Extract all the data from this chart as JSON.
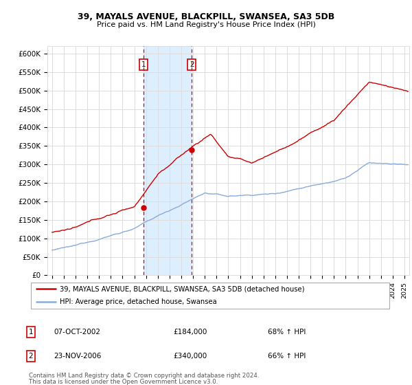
{
  "title1": "39, MAYALS AVENUE, BLACKPILL, SWANSEA, SA3 5DB",
  "title2": "Price paid vs. HM Land Registry's House Price Index (HPI)",
  "ylabel_ticks": [
    "£0",
    "£50K",
    "£100K",
    "£150K",
    "£200K",
    "£250K",
    "£300K",
    "£350K",
    "£400K",
    "£450K",
    "£500K",
    "£550K",
    "£600K"
  ],
  "ytick_values": [
    0,
    50000,
    100000,
    150000,
    200000,
    250000,
    300000,
    350000,
    400000,
    450000,
    500000,
    550000,
    600000
  ],
  "xmin": 1994.6,
  "xmax": 2025.4,
  "ymin": 0,
  "ymax": 620000,
  "purchase1": {
    "date_num": 2002.77,
    "price": 184000,
    "label": "1",
    "date_str": "07-OCT-2002",
    "pct": "68% ↑ HPI"
  },
  "purchase2": {
    "date_num": 2006.9,
    "price": 340000,
    "label": "2",
    "date_str": "23-NOV-2006",
    "pct": "66% ↑ HPI"
  },
  "shade_color": "#ddeeff",
  "dashed_line_color": "#dd0000",
  "box_color": "#cc0000",
  "legend_line1": "39, MAYALS AVENUE, BLACKPILL, SWANSEA, SA3 5DB (detached house)",
  "legend_line2": "HPI: Average price, detached house, Swansea",
  "footnote1": "Contains HM Land Registry data © Crown copyright and database right 2024.",
  "footnote2": "This data is licensed under the Open Government Licence v3.0.",
  "hpi_color": "#88aadd",
  "price_color": "#cc0000",
  "grid_color": "#dddddd",
  "bg_color": "#ffffff",
  "fig_width": 6.0,
  "fig_height": 5.6
}
